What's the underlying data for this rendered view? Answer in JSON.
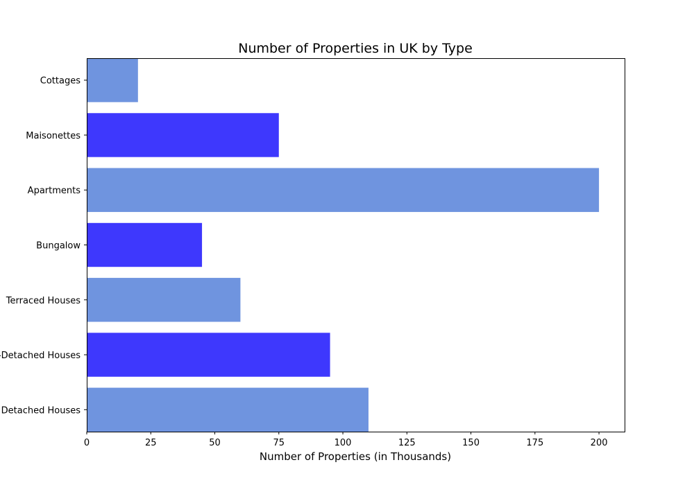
{
  "chart_data": {
    "type": "bar",
    "orientation": "horizontal",
    "title": "Number of Properties in UK by Type",
    "xlabel": "Number of Properties (in Thousands)",
    "ylabel": "",
    "categories": [
      "Detached Houses",
      "Semi-Detached Houses",
      "Terraced Houses",
      "Bungalow",
      "Apartments",
      "Maisonettes",
      "Cottages"
    ],
    "values": [
      110,
      95,
      60,
      45,
      200,
      75,
      20
    ],
    "colors": [
      "#6f94df",
      "#3e38fd",
      "#6f94df",
      "#3e38fd",
      "#6f94df",
      "#3e38fd",
      "#6f94df"
    ],
    "xlim": [
      0,
      210
    ],
    "xticks": [
      0,
      25,
      50,
      75,
      100,
      125,
      150,
      175,
      200
    ],
    "grid": false,
    "legend": null
  }
}
